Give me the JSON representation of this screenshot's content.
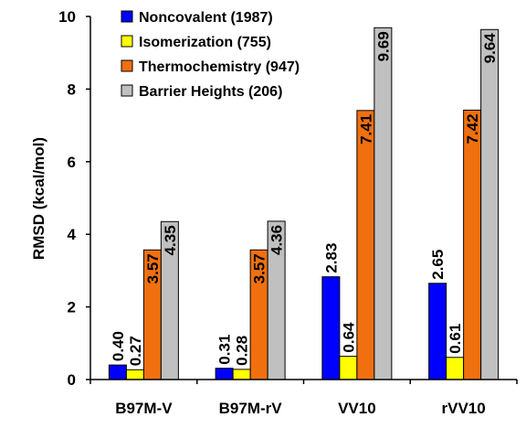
{
  "chart_data": {
    "type": "bar",
    "title": "",
    "xlabel": "",
    "ylabel": "RMSD (kcal/mol)",
    "ylim": [
      0,
      10
    ],
    "yticks": [
      0,
      2,
      4,
      6,
      8,
      10
    ],
    "categories": [
      "B97M-V",
      "B97M-rV",
      "VV10",
      "rVV10"
    ],
    "series": [
      {
        "name": "Noncovalent (1987)",
        "color": "#0000ff",
        "values": [
          0.4,
          0.31,
          2.83,
          2.65
        ]
      },
      {
        "name": "Isomerization (755)",
        "color": "#ffff00",
        "values": [
          0.27,
          0.28,
          0.64,
          0.61
        ]
      },
      {
        "name": "Thermochemistry (947)",
        "color": "#f07010",
        "values": [
          3.57,
          3.57,
          7.41,
          7.42
        ]
      },
      {
        "name": "Barrier Heights (206)",
        "color": "#c0c0c0",
        "values": [
          4.35,
          4.36,
          9.69,
          9.64
        ]
      }
    ],
    "data_labels": [
      [
        "0.40",
        "0.31",
        "2.83",
        "2.65"
      ],
      [
        "0.27",
        "0.28",
        "0.64",
        "0.61"
      ],
      [
        "3.57",
        "3.57",
        "7.41",
        "7.42"
      ],
      [
        "4.35",
        "4.36",
        "9.69",
        "9.64"
      ]
    ],
    "grid": false,
    "legend_position": "top-left"
  }
}
